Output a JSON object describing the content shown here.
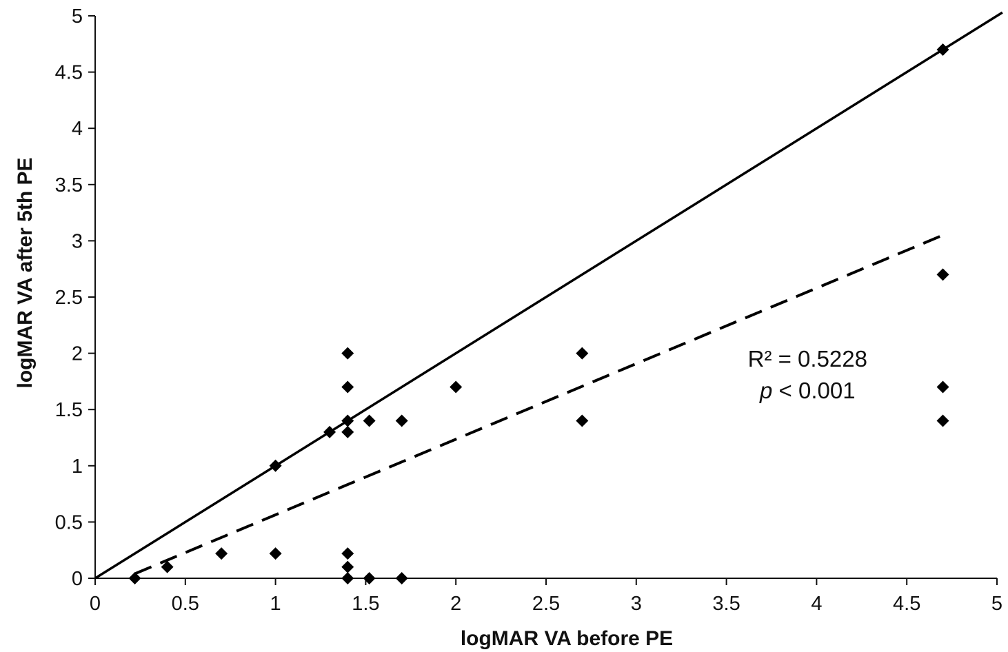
{
  "chart_data": {
    "type": "scatter",
    "title": "",
    "xlabel": "logMAR VA before PE",
    "ylabel": "logMAR VA after 5th PE",
    "xlim": [
      0,
      5
    ],
    "ylim": [
      0,
      5
    ],
    "x_ticks": [
      "0",
      "0.5",
      "1",
      "1.5",
      "2",
      "2.5",
      "3",
      "3.5",
      "4",
      "4.5",
      "5"
    ],
    "y_ticks": [
      "0",
      "0.5",
      "1",
      "1.5",
      "2",
      "2.5",
      "3",
      "3.5",
      "4",
      "4.5",
      "5"
    ],
    "grid": false,
    "legend": "none",
    "marker": "diamond",
    "marker_color": "#000000",
    "points": [
      {
        "x": 0.22,
        "y": 0.0
      },
      {
        "x": 0.4,
        "y": 0.1
      },
      {
        "x": 0.7,
        "y": 0.22
      },
      {
        "x": 1.0,
        "y": 0.22
      },
      {
        "x": 1.0,
        "y": 1.0
      },
      {
        "x": 1.3,
        "y": 1.3
      },
      {
        "x": 1.4,
        "y": 2.0
      },
      {
        "x": 1.4,
        "y": 1.7
      },
      {
        "x": 1.4,
        "y": 1.4
      },
      {
        "x": 1.4,
        "y": 1.3
      },
      {
        "x": 1.4,
        "y": 0.22
      },
      {
        "x": 1.4,
        "y": 0.1
      },
      {
        "x": 1.4,
        "y": 0.0
      },
      {
        "x": 1.52,
        "y": 1.4
      },
      {
        "x": 1.52,
        "y": 0.0
      },
      {
        "x": 1.7,
        "y": 1.4
      },
      {
        "x": 1.7,
        "y": 0.0
      },
      {
        "x": 2.0,
        "y": 1.7
      },
      {
        "x": 2.7,
        "y": 2.0
      },
      {
        "x": 2.7,
        "y": 1.4
      },
      {
        "x": 4.7,
        "y": 4.7
      },
      {
        "x": 4.7,
        "y": 2.7
      },
      {
        "x": 4.7,
        "y": 1.7
      },
      {
        "x": 4.7,
        "y": 1.4
      }
    ],
    "reference_line": {
      "style": "solid",
      "x": [
        0,
        5.03
      ],
      "y": [
        0,
        5.03
      ]
    },
    "trend_line": {
      "style": "dashed",
      "x": [
        0.22,
        4.7
      ],
      "y": [
        0.04,
        3.05
      ]
    },
    "annotations": [
      {
        "prefix": "R² = 0.5228",
        "italic": "",
        "rest": "",
        "x": 3.95,
        "y": 1.88
      },
      {
        "prefix": "",
        "italic": "p",
        "rest": " < 0.001",
        "x": 3.95,
        "y": 1.6
      }
    ]
  }
}
